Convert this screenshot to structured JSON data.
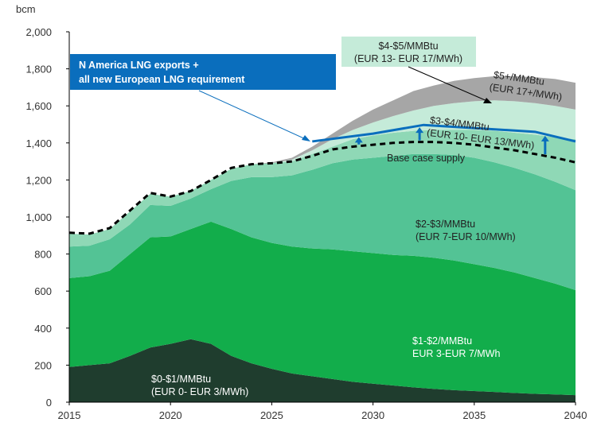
{
  "chart_data": {
    "type": "area",
    "stacked": true,
    "ylabel": "bcm",
    "ylim": [
      0,
      2000
    ],
    "xlim": [
      2015,
      2040
    ],
    "yticks": [
      "0",
      "200",
      "400",
      "600",
      "800",
      "1,000",
      "1,200",
      "1,400",
      "1,600",
      "1,800",
      "2,000"
    ],
    "ytick_values": [
      0,
      200,
      400,
      600,
      800,
      1000,
      1200,
      1400,
      1600,
      1800,
      2000
    ],
    "xticks": [
      "2015",
      "2020",
      "2025",
      "2030",
      "2035",
      "2040"
    ],
    "xtick_values": [
      2015,
      2020,
      2025,
      2030,
      2035,
      2040
    ],
    "grid": false,
    "x": [
      2015,
      2016,
      2017,
      2018,
      2019,
      2020,
      2021,
      2022,
      2023,
      2024,
      2025,
      2026,
      2027,
      2028,
      2029,
      2030,
      2031,
      2032,
      2033,
      2034,
      2035,
      2036,
      2037,
      2038,
      2039,
      2040
    ],
    "series": [
      {
        "name": "$0-$1/MMBtu (EUR 0- EUR 3/MWh)",
        "color": "#1f3d2e",
        "values": [
          190,
          200,
          210,
          250,
          295,
          315,
          340,
          315,
          250,
          210,
          180,
          155,
          140,
          125,
          110,
          100,
          90,
          80,
          72,
          65,
          60,
          55,
          50,
          45,
          42,
          38
        ]
      },
      {
        "name": "$1-$2/MMBtu EUR 3-EUR 7/MWh",
        "color": "#12ad4b",
        "values": [
          480,
          480,
          500,
          550,
          595,
          580,
          595,
          660,
          685,
          680,
          680,
          685,
          690,
          700,
          705,
          705,
          705,
          710,
          708,
          700,
          685,
          670,
          650,
          625,
          598,
          567
        ]
      },
      {
        "name": "$2-$3/MMBtu (EUR 7-EUR 10/MWh)",
        "color": "#53c395",
        "values": [
          170,
          165,
          170,
          160,
          175,
          165,
          165,
          175,
          260,
          325,
          355,
          385,
          425,
          465,
          495,
          515,
          535,
          550,
          560,
          570,
          575,
          570,
          565,
          560,
          550,
          540
        ]
      },
      {
        "name": "$3-$4/MMBtu (EUR 10- EUR 13/MWh)",
        "color": "#8fd8b6",
        "values": [
          70,
          60,
          55,
          70,
          60,
          50,
          40,
          50,
          65,
          70,
          75,
          75,
          85,
          90,
          110,
          120,
          125,
          125,
          130,
          135,
          150,
          170,
          190,
          215,
          240,
          275
        ]
      },
      {
        "name": "$4-$5/MMBtu (EUR 13- EUR 17/MWh)",
        "color": "#c5ebd9",
        "values": [
          0,
          0,
          0,
          0,
          0,
          0,
          0,
          0,
          0,
          0,
          0,
          10,
          20,
          40,
          50,
          70,
          90,
          110,
          130,
          145,
          155,
          165,
          170,
          170,
          170,
          160
        ]
      },
      {
        "name": "$5+/MMBtu (EUR 17+/MWh)",
        "color": "#a6a6a6",
        "values": [
          0,
          0,
          0,
          0,
          0,
          0,
          0,
          0,
          0,
          0,
          5,
          10,
          20,
          30,
          50,
          70,
          85,
          105,
          110,
          120,
          125,
          130,
          135,
          140,
          145,
          145
        ]
      }
    ],
    "base_case_supply": {
      "name": "Base case supply",
      "color": "#000000",
      "style": "dashed",
      "values": [
        915,
        910,
        940,
        1035,
        1130,
        1110,
        1140,
        1200,
        1265,
        1285,
        1290,
        1300,
        1330,
        1365,
        1380,
        1390,
        1400,
        1405,
        1405,
        1400,
        1390,
        1375,
        1360,
        1340,
        1320,
        1295
      ]
    },
    "lng_requirement": {
      "name": "N America LNG exports + all new European LNG requirement",
      "color": "#0a6ebd",
      "x": [
        2027,
        2030,
        2032.5,
        2038,
        2040
      ],
      "values": [
        1408,
        1450,
        1497,
        1460,
        1408
      ],
      "arrows_at": [
        2029.3,
        2032.3,
        2038.5
      ]
    },
    "annotations": {
      "callout_line1": "N America LNG exports +",
      "callout_line2": "all new European LNG requirement",
      "l45_line1": "$4-$5/MMBtu",
      "l45_line2": "(EUR 13- EUR 17/MWh)",
      "l5_line1": "$5+/MMBtu",
      "l5_line2": "(EUR 17+/MWh)",
      "l34_line1": "$3-$4/MMBtu",
      "l34_line2": "(EUR 10- EUR 13/MWh)",
      "base": "Base case supply",
      "l23_line1": "$2-$3/MMBtu",
      "l23_line2": "(EUR 7-EUR 10/MWh)",
      "l12_line1": "$1-$2/MMBtu",
      "l12_line2": "EUR 3-EUR 7/MWh",
      "l01_line1": "$0-$1/MMBtu",
      "l01_line2": "(EUR 0- EUR 3/MWh)"
    }
  }
}
